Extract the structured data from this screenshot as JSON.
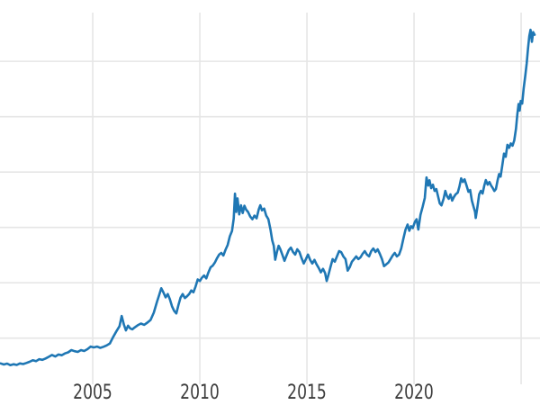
{
  "figure": {
    "title": "",
    "background_color": "#ffffff"
  },
  "chart_data": {
    "type": "line",
    "title": "",
    "xlabel": "",
    "ylabel": "",
    "legend": "none",
    "grid": "on",
    "line_color": "#1f77b4",
    "grid_color": "#e6e6e6",
    "tick_label_color": "#3c3c3c",
    "x_tick_labels": [
      "2005",
      "2010",
      "2015",
      "2020"
    ],
    "x_tick_years": [
      2005,
      2010,
      2015,
      2020,
      2025
    ],
    "y_axis_labels_visible": false,
    "y_gridline_values": [
      500,
      1000,
      1500,
      2000,
      2500,
      3000
    ],
    "xlim": [
      2000.67,
      2025.88
    ],
    "ylim": [
      140,
      3440
    ],
    "series": [
      {
        "name": "price",
        "points": [
          [
            2000.7,
            272
          ],
          [
            2000.85,
            262
          ],
          [
            2001.0,
            270
          ],
          [
            2001.15,
            256
          ],
          [
            2001.3,
            264
          ],
          [
            2001.45,
            258
          ],
          [
            2001.6,
            272
          ],
          [
            2001.75,
            266
          ],
          [
            2001.9,
            276
          ],
          [
            2002.05,
            286
          ],
          [
            2002.2,
            300
          ],
          [
            2002.35,
            292
          ],
          [
            2002.5,
            310
          ],
          [
            2002.65,
            304
          ],
          [
            2002.8,
            316
          ],
          [
            2002.95,
            332
          ],
          [
            2003.1,
            348
          ],
          [
            2003.25,
            334
          ],
          [
            2003.4,
            352
          ],
          [
            2003.55,
            346
          ],
          [
            2003.7,
            362
          ],
          [
            2003.85,
            372
          ],
          [
            2004.0,
            392
          ],
          [
            2004.15,
            382
          ],
          [
            2004.3,
            376
          ],
          [
            2004.45,
            392
          ],
          [
            2004.6,
            384
          ],
          [
            2004.75,
            400
          ],
          [
            2004.9,
            424
          ],
          [
            2005.05,
            416
          ],
          [
            2005.2,
            424
          ],
          [
            2005.35,
            412
          ],
          [
            2005.5,
            422
          ],
          [
            2005.65,
            434
          ],
          [
            2005.8,
            452
          ],
          [
            2005.95,
            510
          ],
          [
            2006.1,
            560
          ],
          [
            2006.25,
            608
          ],
          [
            2006.35,
            700
          ],
          [
            2006.45,
            624
          ],
          [
            2006.55,
            570
          ],
          [
            2006.65,
            612
          ],
          [
            2006.75,
            588
          ],
          [
            2006.85,
            580
          ],
          [
            2006.95,
            596
          ],
          [
            2007.1,
            616
          ],
          [
            2007.25,
            632
          ],
          [
            2007.4,
            620
          ],
          [
            2007.55,
            640
          ],
          [
            2007.7,
            664
          ],
          [
            2007.85,
            730
          ],
          [
            2008.0,
            830
          ],
          [
            2008.1,
            888
          ],
          [
            2008.2,
            950
          ],
          [
            2008.3,
            912
          ],
          [
            2008.4,
            868
          ],
          [
            2008.5,
            898
          ],
          [
            2008.6,
            852
          ],
          [
            2008.7,
            788
          ],
          [
            2008.8,
            746
          ],
          [
            2008.9,
            723
          ],
          [
            2009.0,
            800
          ],
          [
            2009.1,
            866
          ],
          [
            2009.2,
            898
          ],
          [
            2009.3,
            862
          ],
          [
            2009.4,
            878
          ],
          [
            2009.5,
            898
          ],
          [
            2009.6,
            930
          ],
          [
            2009.7,
            914
          ],
          [
            2009.8,
            966
          ],
          [
            2009.9,
            1030
          ],
          [
            2010.0,
            1016
          ],
          [
            2010.1,
            1046
          ],
          [
            2010.2,
            1066
          ],
          [
            2010.3,
            1040
          ],
          [
            2010.4,
            1094
          ],
          [
            2010.5,
            1140
          ],
          [
            2010.6,
            1154
          ],
          [
            2010.7,
            1182
          ],
          [
            2010.8,
            1222
          ],
          [
            2010.9,
            1254
          ],
          [
            2011.0,
            1270
          ],
          [
            2011.1,
            1246
          ],
          [
            2011.2,
            1298
          ],
          [
            2011.3,
            1342
          ],
          [
            2011.4,
            1420
          ],
          [
            2011.5,
            1468
          ],
          [
            2011.58,
            1580
          ],
          [
            2011.64,
            1805
          ],
          [
            2011.7,
            1640
          ],
          [
            2011.76,
            1762
          ],
          [
            2011.84,
            1618
          ],
          [
            2011.92,
            1700
          ],
          [
            2012.0,
            1630
          ],
          [
            2012.08,
            1696
          ],
          [
            2012.16,
            1660
          ],
          [
            2012.25,
            1640
          ],
          [
            2012.35,
            1598
          ],
          [
            2012.45,
            1574
          ],
          [
            2012.55,
            1606
          ],
          [
            2012.65,
            1582
          ],
          [
            2012.75,
            1662
          ],
          [
            2012.82,
            1700
          ],
          [
            2012.9,
            1654
          ],
          [
            2013.0,
            1670
          ],
          [
            2013.1,
            1606
          ],
          [
            2013.2,
            1574
          ],
          [
            2013.3,
            1478
          ],
          [
            2013.38,
            1382
          ],
          [
            2013.45,
            1334
          ],
          [
            2013.52,
            1208
          ],
          [
            2013.6,
            1278
          ],
          [
            2013.68,
            1334
          ],
          [
            2013.76,
            1302
          ],
          [
            2013.85,
            1254
          ],
          [
            2013.95,
            1198
          ],
          [
            2014.05,
            1246
          ],
          [
            2014.15,
            1294
          ],
          [
            2014.25,
            1318
          ],
          [
            2014.35,
            1278
          ],
          [
            2014.45,
            1254
          ],
          [
            2014.55,
            1302
          ],
          [
            2014.65,
            1278
          ],
          [
            2014.75,
            1222
          ],
          [
            2014.85,
            1174
          ],
          [
            2014.95,
            1214
          ],
          [
            2015.05,
            1254
          ],
          [
            2015.15,
            1206
          ],
          [
            2015.25,
            1174
          ],
          [
            2015.35,
            1206
          ],
          [
            2015.45,
            1166
          ],
          [
            2015.55,
            1134
          ],
          [
            2015.65,
            1094
          ],
          [
            2015.75,
            1126
          ],
          [
            2015.85,
            1086
          ],
          [
            2015.92,
            1016
          ],
          [
            2016.0,
            1070
          ],
          [
            2016.1,
            1142
          ],
          [
            2016.2,
            1214
          ],
          [
            2016.3,
            1190
          ],
          [
            2016.4,
            1238
          ],
          [
            2016.5,
            1286
          ],
          [
            2016.6,
            1276
          ],
          [
            2016.7,
            1238
          ],
          [
            2016.8,
            1214
          ],
          [
            2016.9,
            1110
          ],
          [
            2017.0,
            1142
          ],
          [
            2017.1,
            1190
          ],
          [
            2017.2,
            1214
          ],
          [
            2017.3,
            1238
          ],
          [
            2017.4,
            1214
          ],
          [
            2017.5,
            1230
          ],
          [
            2017.6,
            1262
          ],
          [
            2017.7,
            1286
          ],
          [
            2017.8,
            1254
          ],
          [
            2017.9,
            1238
          ],
          [
            2018.0,
            1286
          ],
          [
            2018.1,
            1310
          ],
          [
            2018.2,
            1278
          ],
          [
            2018.3,
            1302
          ],
          [
            2018.4,
            1262
          ],
          [
            2018.5,
            1214
          ],
          [
            2018.6,
            1150
          ],
          [
            2018.7,
            1166
          ],
          [
            2018.8,
            1182
          ],
          [
            2018.9,
            1214
          ],
          [
            2019.0,
            1246
          ],
          [
            2019.1,
            1270
          ],
          [
            2019.2,
            1238
          ],
          [
            2019.3,
            1254
          ],
          [
            2019.4,
            1310
          ],
          [
            2019.5,
            1398
          ],
          [
            2019.6,
            1478
          ],
          [
            2019.7,
            1526
          ],
          [
            2019.78,
            1470
          ],
          [
            2019.86,
            1510
          ],
          [
            2019.94,
            1494
          ],
          [
            2020.04,
            1550
          ],
          [
            2020.12,
            1574
          ],
          [
            2020.2,
            1480
          ],
          [
            2020.3,
            1614
          ],
          [
            2020.4,
            1686
          ],
          [
            2020.5,
            1766
          ],
          [
            2020.58,
            1951
          ],
          [
            2020.66,
            1878
          ],
          [
            2020.72,
            1926
          ],
          [
            2020.8,
            1854
          ],
          [
            2020.88,
            1886
          ],
          [
            2020.96,
            1830
          ],
          [
            2021.04,
            1846
          ],
          [
            2021.12,
            1782
          ],
          [
            2021.2,
            1718
          ],
          [
            2021.28,
            1699
          ],
          [
            2021.38,
            1758
          ],
          [
            2021.46,
            1830
          ],
          [
            2021.54,
            1782
          ],
          [
            2021.62,
            1758
          ],
          [
            2021.7,
            1798
          ],
          [
            2021.78,
            1742
          ],
          [
            2021.86,
            1774
          ],
          [
            2021.94,
            1798
          ],
          [
            2022.04,
            1814
          ],
          [
            2022.12,
            1870
          ],
          [
            2022.2,
            1943
          ],
          [
            2022.28,
            1910
          ],
          [
            2022.36,
            1934
          ],
          [
            2022.45,
            1878
          ],
          [
            2022.54,
            1822
          ],
          [
            2022.62,
            1838
          ],
          [
            2022.7,
            1742
          ],
          [
            2022.78,
            1686
          ],
          [
            2022.85,
            1638
          ],
          [
            2022.88,
            1585
          ],
          [
            2022.96,
            1686
          ],
          [
            2023.04,
            1798
          ],
          [
            2023.12,
            1830
          ],
          [
            2023.2,
            1806
          ],
          [
            2023.28,
            1878
          ],
          [
            2023.35,
            1927
          ],
          [
            2023.44,
            1886
          ],
          [
            2023.52,
            1910
          ],
          [
            2023.6,
            1878
          ],
          [
            2023.68,
            1854
          ],
          [
            2023.75,
            1829
          ],
          [
            2023.82,
            1846
          ],
          [
            2023.9,
            1926
          ],
          [
            2023.97,
            1982
          ],
          [
            2024.04,
            1958
          ],
          [
            2024.12,
            2060
          ],
          [
            2024.2,
            2166
          ],
          [
            2024.28,
            2138
          ],
          [
            2024.36,
            2246
          ],
          [
            2024.44,
            2218
          ],
          [
            2024.52,
            2258
          ],
          [
            2024.6,
            2238
          ],
          [
            2024.68,
            2286
          ],
          [
            2024.76,
            2390
          ],
          [
            2024.82,
            2520
          ],
          [
            2024.88,
            2614
          ],
          [
            2024.93,
            2556
          ],
          [
            2024.98,
            2642
          ],
          [
            2025.05,
            2618
          ],
          [
            2025.12,
            2758
          ],
          [
            2025.19,
            2866
          ],
          [
            2025.26,
            2980
          ],
          [
            2025.32,
            3118
          ],
          [
            2025.38,
            3226
          ],
          [
            2025.44,
            3285
          ],
          [
            2025.5,
            3176
          ],
          [
            2025.56,
            3264
          ],
          [
            2025.63,
            3240
          ]
        ]
      }
    ]
  }
}
